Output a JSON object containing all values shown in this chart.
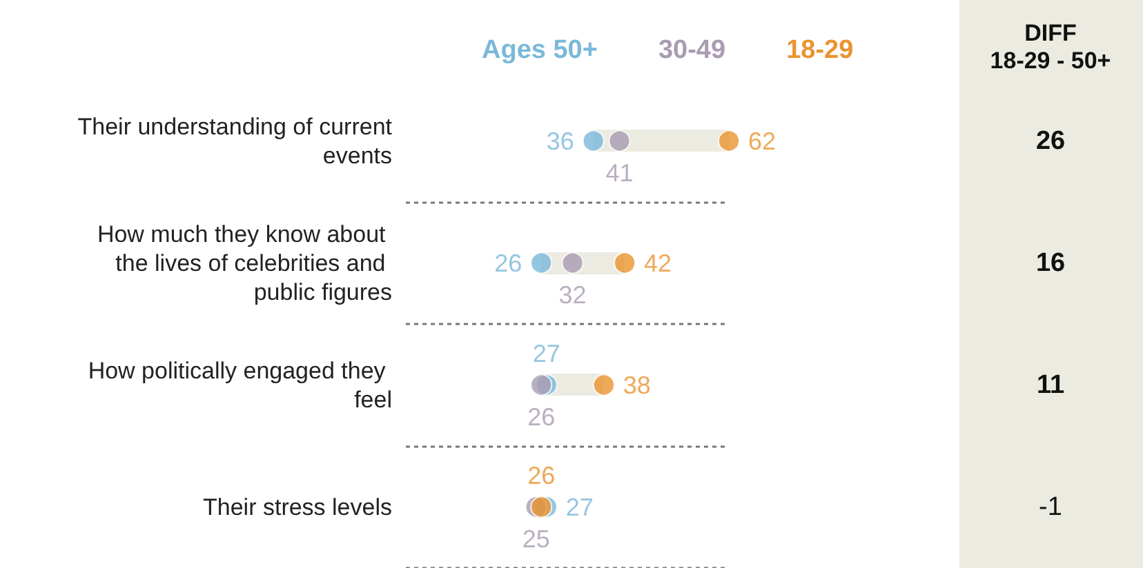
{
  "chart_data": {
    "type": "scatter",
    "orientation": "horizontal",
    "categories": [
      "Their understanding of current events",
      "How much they know about the lives of celebrities and public figures",
      "How politically engaged they feel",
      "Their stress levels"
    ],
    "series": [
      {
        "name": "Ages 50+",
        "color": "#7ab8d9",
        "values": [
          36,
          26,
          27,
          27
        ]
      },
      {
        "name": "30-49",
        "color": "#a99bb1",
        "values": [
          41,
          32,
          26,
          25
        ]
      },
      {
        "name": "18-29",
        "color": "#ea9330",
        "values": [
          62,
          42,
          38,
          26
        ]
      }
    ],
    "data_labels": true,
    "legend": "top",
    "grid": "y",
    "marker": "circle",
    "annotations": [
      "DIFF\n18-29 - 50+",
      "26",
      "16",
      "11",
      "-1"
    ]
  }
}
